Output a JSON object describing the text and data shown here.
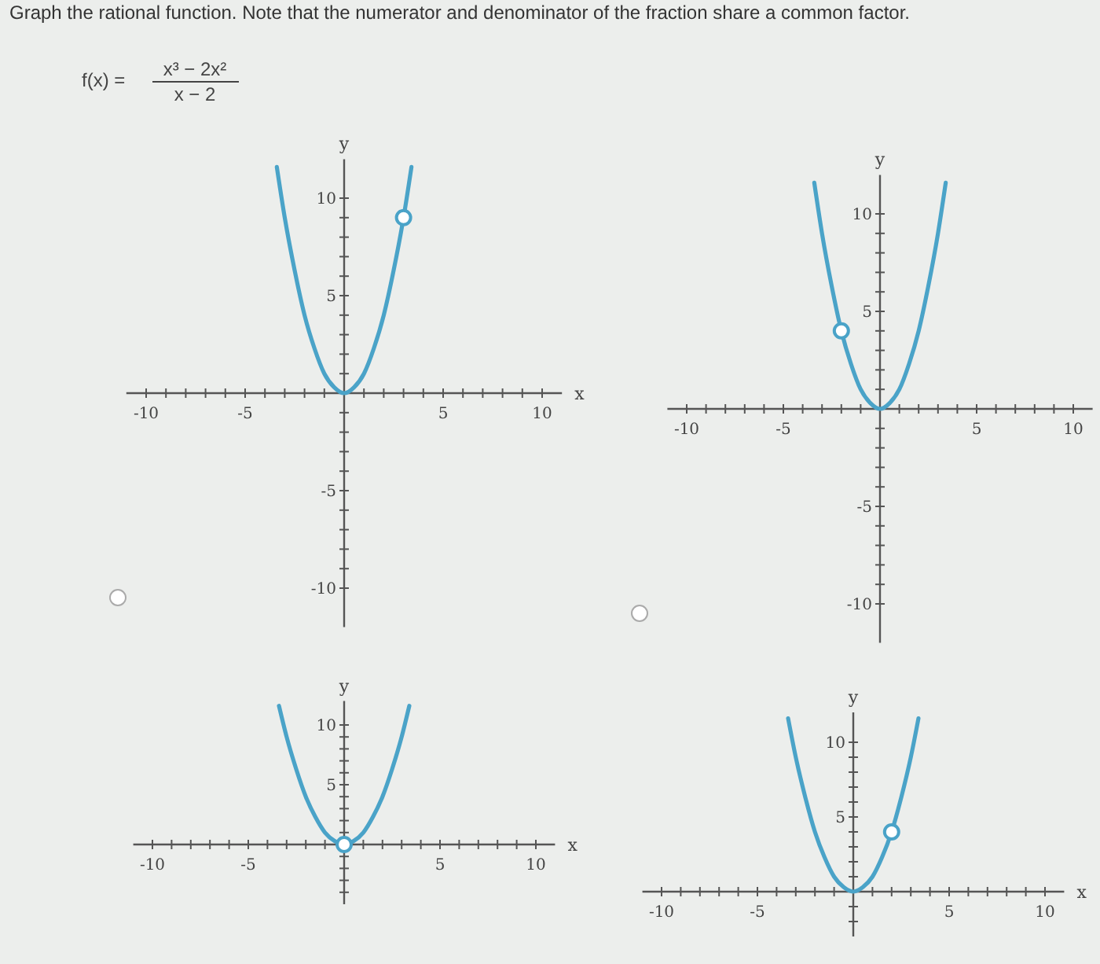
{
  "chart_data": [
    {
      "type": "line",
      "title": "Graph the rational function. Note that the numerator and denominator of the fraction share a common factor.",
      "annotations": [
        "f(x) =",
        "x³ − 2x²",
        "x − 2"
      ],
      "xlabel": "x",
      "ylabel": "y",
      "xlim": [
        -11,
        11
      ],
      "ylim": [
        -12,
        12
      ],
      "xticks": [
        -10,
        {
          "value": -9,
          "label": null
        },
        {
          "value": -8,
          "label": null
        },
        {
          "value": -7,
          "label": null
        },
        {
          "value": -6,
          "label": null
        },
        -5,
        {
          "value": -4,
          "label": null
        },
        {
          "value": -3,
          "label": null
        },
        {
          "value": -2,
          "label": null
        },
        {
          "value": -1,
          "label": null
        },
        {
          "value": 1,
          "label": null
        },
        {
          "value": 2,
          "label": null
        },
        {
          "value": 3,
          "label": null
        },
        {
          "value": 4,
          "label": null
        },
        5,
        {
          "value": 6,
          "label": null
        },
        {
          "value": 7,
          "label": null
        },
        {
          "value": 8,
          "label": null
        },
        {
          "value": 9,
          "label": null
        },
        10
      ],
      "yticks": [
        -10,
        {
          "value": -9,
          "label": null
        },
        {
          "value": -8,
          "label": null
        },
        {
          "value": -7,
          "label": null
        },
        {
          "value": -6,
          "label": null
        },
        -5,
        {
          "value": -4,
          "label": null
        },
        {
          "value": -3,
          "label": null
        },
        {
          "value": -2,
          "label": null
        },
        {
          "value": -1,
          "label": null
        },
        {
          "value": 1,
          "label": null
        },
        {
          "value": 2,
          "label": null
        },
        {
          "value": 3,
          "label": null
        },
        {
          "value": 4,
          "label": null
        },
        5,
        {
          "value": 6,
          "label": null
        },
        {
          "value": 7,
          "label": null
        },
        {
          "value": 8,
          "label": null
        },
        {
          "value": 9,
          "label": null
        },
        10
      ],
      "series": [
        {
          "color": "#4aa3c8",
          "x": [
            -3.4,
            -3,
            -2.5,
            -2,
            -1.5,
            -1,
            -0.5,
            0,
            0.5,
            1,
            1.5,
            2,
            2.5,
            3,
            3.4
          ],
          "values": [
            11.6,
            9,
            6.3,
            4,
            2.3,
            1,
            0.3,
            0,
            0.3,
            1,
            2.3,
            4,
            6.3,
            9,
            11.6
          ]
        },
        {
          "type": "scatter",
          "marker": "circle",
          "color": "#4aa3c8",
          "x": [
            3
          ],
          "values": [
            9
          ]
        }
      ]
    },
    {
      "type": "line",
      "ylabel": "y",
      "xlim": [
        -11,
        11
      ],
      "ylim": [
        -12,
        12
      ],
      "xticks": [
        -10,
        {
          "value": -9,
          "label": null
        },
        {
          "value": -8,
          "label": null
        },
        {
          "value": -7,
          "label": null
        },
        {
          "value": -6,
          "label": null
        },
        -5,
        {
          "value": -4,
          "label": null
        },
        {
          "value": -3,
          "label": null
        },
        {
          "value": -2,
          "label": null
        },
        {
          "value": -1,
          "label": null
        },
        {
          "value": 1,
          "label": null
        },
        {
          "value": 2,
          "label": null
        },
        {
          "value": 3,
          "label": null
        },
        {
          "value": 4,
          "label": null
        },
        5,
        {
          "value": 6,
          "label": null
        },
        {
          "value": 7,
          "label": null
        },
        {
          "value": 8,
          "label": null
        },
        {
          "value": 9,
          "label": null
        },
        10
      ],
      "yticks": [
        -10,
        {
          "value": -9,
          "label": null
        },
        {
          "value": -8,
          "label": null
        },
        {
          "value": -7,
          "label": null
        },
        {
          "value": -6,
          "label": null
        },
        -5,
        {
          "value": -4,
          "label": null
        },
        {
          "value": -3,
          "label": null
        },
        {
          "value": -2,
          "label": null
        },
        {
          "value": -1,
          "label": null
        },
        {
          "value": 1,
          "label": null
        },
        {
          "value": 2,
          "label": null
        },
        {
          "value": 3,
          "label": null
        },
        {
          "value": 4,
          "label": null
        },
        5,
        {
          "value": 6,
          "label": null
        },
        {
          "value": 7,
          "label": null
        },
        {
          "value": 8,
          "label": null
        },
        {
          "value": 9,
          "label": null
        },
        10
      ],
      "series": [
        {
          "color": "#4aa3c8",
          "x": [
            -3.4,
            -3,
            -2.5,
            -2,
            -1.5,
            -1,
            -0.5,
            0,
            0.5,
            1,
            1.5,
            2,
            2.5,
            3,
            3.4
          ],
          "values": [
            11.6,
            9,
            6.3,
            4,
            2.3,
            1,
            0.3,
            0,
            0.3,
            1,
            2.3,
            4,
            6.3,
            9,
            11.6
          ]
        },
        {
          "type": "scatter",
          "marker": "circle",
          "color": "#4aa3c8",
          "x": [
            -2
          ],
          "values": [
            4
          ]
        }
      ]
    },
    {
      "type": "line",
      "xlabel": "x",
      "ylabel": "y",
      "xlim": [
        -11,
        11
      ],
      "ylim": [
        -5,
        12
      ],
      "xticks": [
        -10,
        {
          "value": -9,
          "label": null
        },
        {
          "value": -8,
          "label": null
        },
        {
          "value": -7,
          "label": null
        },
        {
          "value": -6,
          "label": null
        },
        -5,
        {
          "value": -4,
          "label": null
        },
        {
          "value": -3,
          "label": null
        },
        {
          "value": -2,
          "label": null
        },
        {
          "value": -1,
          "label": null
        },
        {
          "value": 1,
          "label": null
        },
        {
          "value": 2,
          "label": null
        },
        {
          "value": 3,
          "label": null
        },
        {
          "value": 4,
          "label": null
        },
        5,
        {
          "value": 6,
          "label": null
        },
        {
          "value": 7,
          "label": null
        },
        {
          "value": 8,
          "label": null
        },
        {
          "value": 9,
          "label": null
        },
        10
      ],
      "yticks": [
        {
          "value": -4,
          "label": null
        },
        {
          "value": -3,
          "label": null
        },
        {
          "value": -2,
          "label": null
        },
        {
          "value": -1,
          "label": null
        },
        {
          "value": 1,
          "label": null
        },
        {
          "value": 2,
          "label": null
        },
        {
          "value": 3,
          "label": null
        },
        {
          "value": 4,
          "label": null
        },
        5,
        {
          "value": 6,
          "label": null
        },
        {
          "value": 7,
          "label": null
        },
        {
          "value": 8,
          "label": null
        },
        {
          "value": 9,
          "label": null
        },
        10
      ],
      "series": [
        {
          "color": "#4aa3c8",
          "x": [
            -3.4,
            -3,
            -2.5,
            -2,
            -1.5,
            -1,
            -0.5,
            0,
            0.5,
            1,
            1.5,
            2,
            2.5,
            3,
            3.4
          ],
          "values": [
            11.6,
            9,
            6.3,
            4,
            2.3,
            1,
            0.3,
            0,
            0.3,
            1,
            2.3,
            4,
            6.3,
            9,
            11.6
          ]
        },
        {
          "type": "scatter",
          "marker": "circle",
          "color": "#4aa3c8",
          "x": [
            0
          ],
          "values": [
            0
          ]
        }
      ]
    },
    {
      "type": "line",
      "xlabel": "x",
      "ylabel": "y",
      "xlim": [
        -11,
        11
      ],
      "ylim": [
        -3,
        12
      ],
      "xticks": [
        -10,
        {
          "value": -9,
          "label": null
        },
        {
          "value": -8,
          "label": null
        },
        {
          "value": -7,
          "label": null
        },
        {
          "value": -6,
          "label": null
        },
        -5,
        {
          "value": -4,
          "label": null
        },
        {
          "value": -3,
          "label": null
        },
        {
          "value": -2,
          "label": null
        },
        {
          "value": -1,
          "label": null
        },
        {
          "value": 1,
          "label": null
        },
        {
          "value": 2,
          "label": null
        },
        {
          "value": 3,
          "label": null
        },
        {
          "value": 4,
          "label": null
        },
        5,
        {
          "value": 6,
          "label": null
        },
        {
          "value": 7,
          "label": null
        },
        {
          "value": 8,
          "label": null
        },
        {
          "value": 9,
          "label": null
        },
        10
      ],
      "yticks": [
        {
          "value": -2,
          "label": null
        },
        {
          "value": -1,
          "label": null
        },
        {
          "value": 1,
          "label": null
        },
        {
          "value": 2,
          "label": null
        },
        {
          "value": 3,
          "label": null
        },
        {
          "value": 4,
          "label": null
        },
        5,
        {
          "value": 6,
          "label": null
        },
        {
          "value": 7,
          "label": null
        },
        {
          "value": 8,
          "label": null
        },
        {
          "value": 9,
          "label": null
        },
        10
      ],
      "series": [
        {
          "color": "#4aa3c8",
          "x": [
            -3.4,
            -3,
            -2.5,
            -2,
            -1.5,
            -1,
            -0.5,
            0,
            0.5,
            1,
            1.5,
            2,
            2.5,
            3,
            3.4
          ],
          "values": [
            11.6,
            9,
            6.3,
            4,
            2.3,
            1,
            0.3,
            0,
            0.3,
            1,
            2.3,
            4,
            6.3,
            9,
            11.6
          ]
        },
        {
          "type": "scatter",
          "marker": "circle",
          "color": "#4aa3c8",
          "x": [
            2
          ],
          "values": [
            4
          ]
        }
      ]
    }
  ]
}
